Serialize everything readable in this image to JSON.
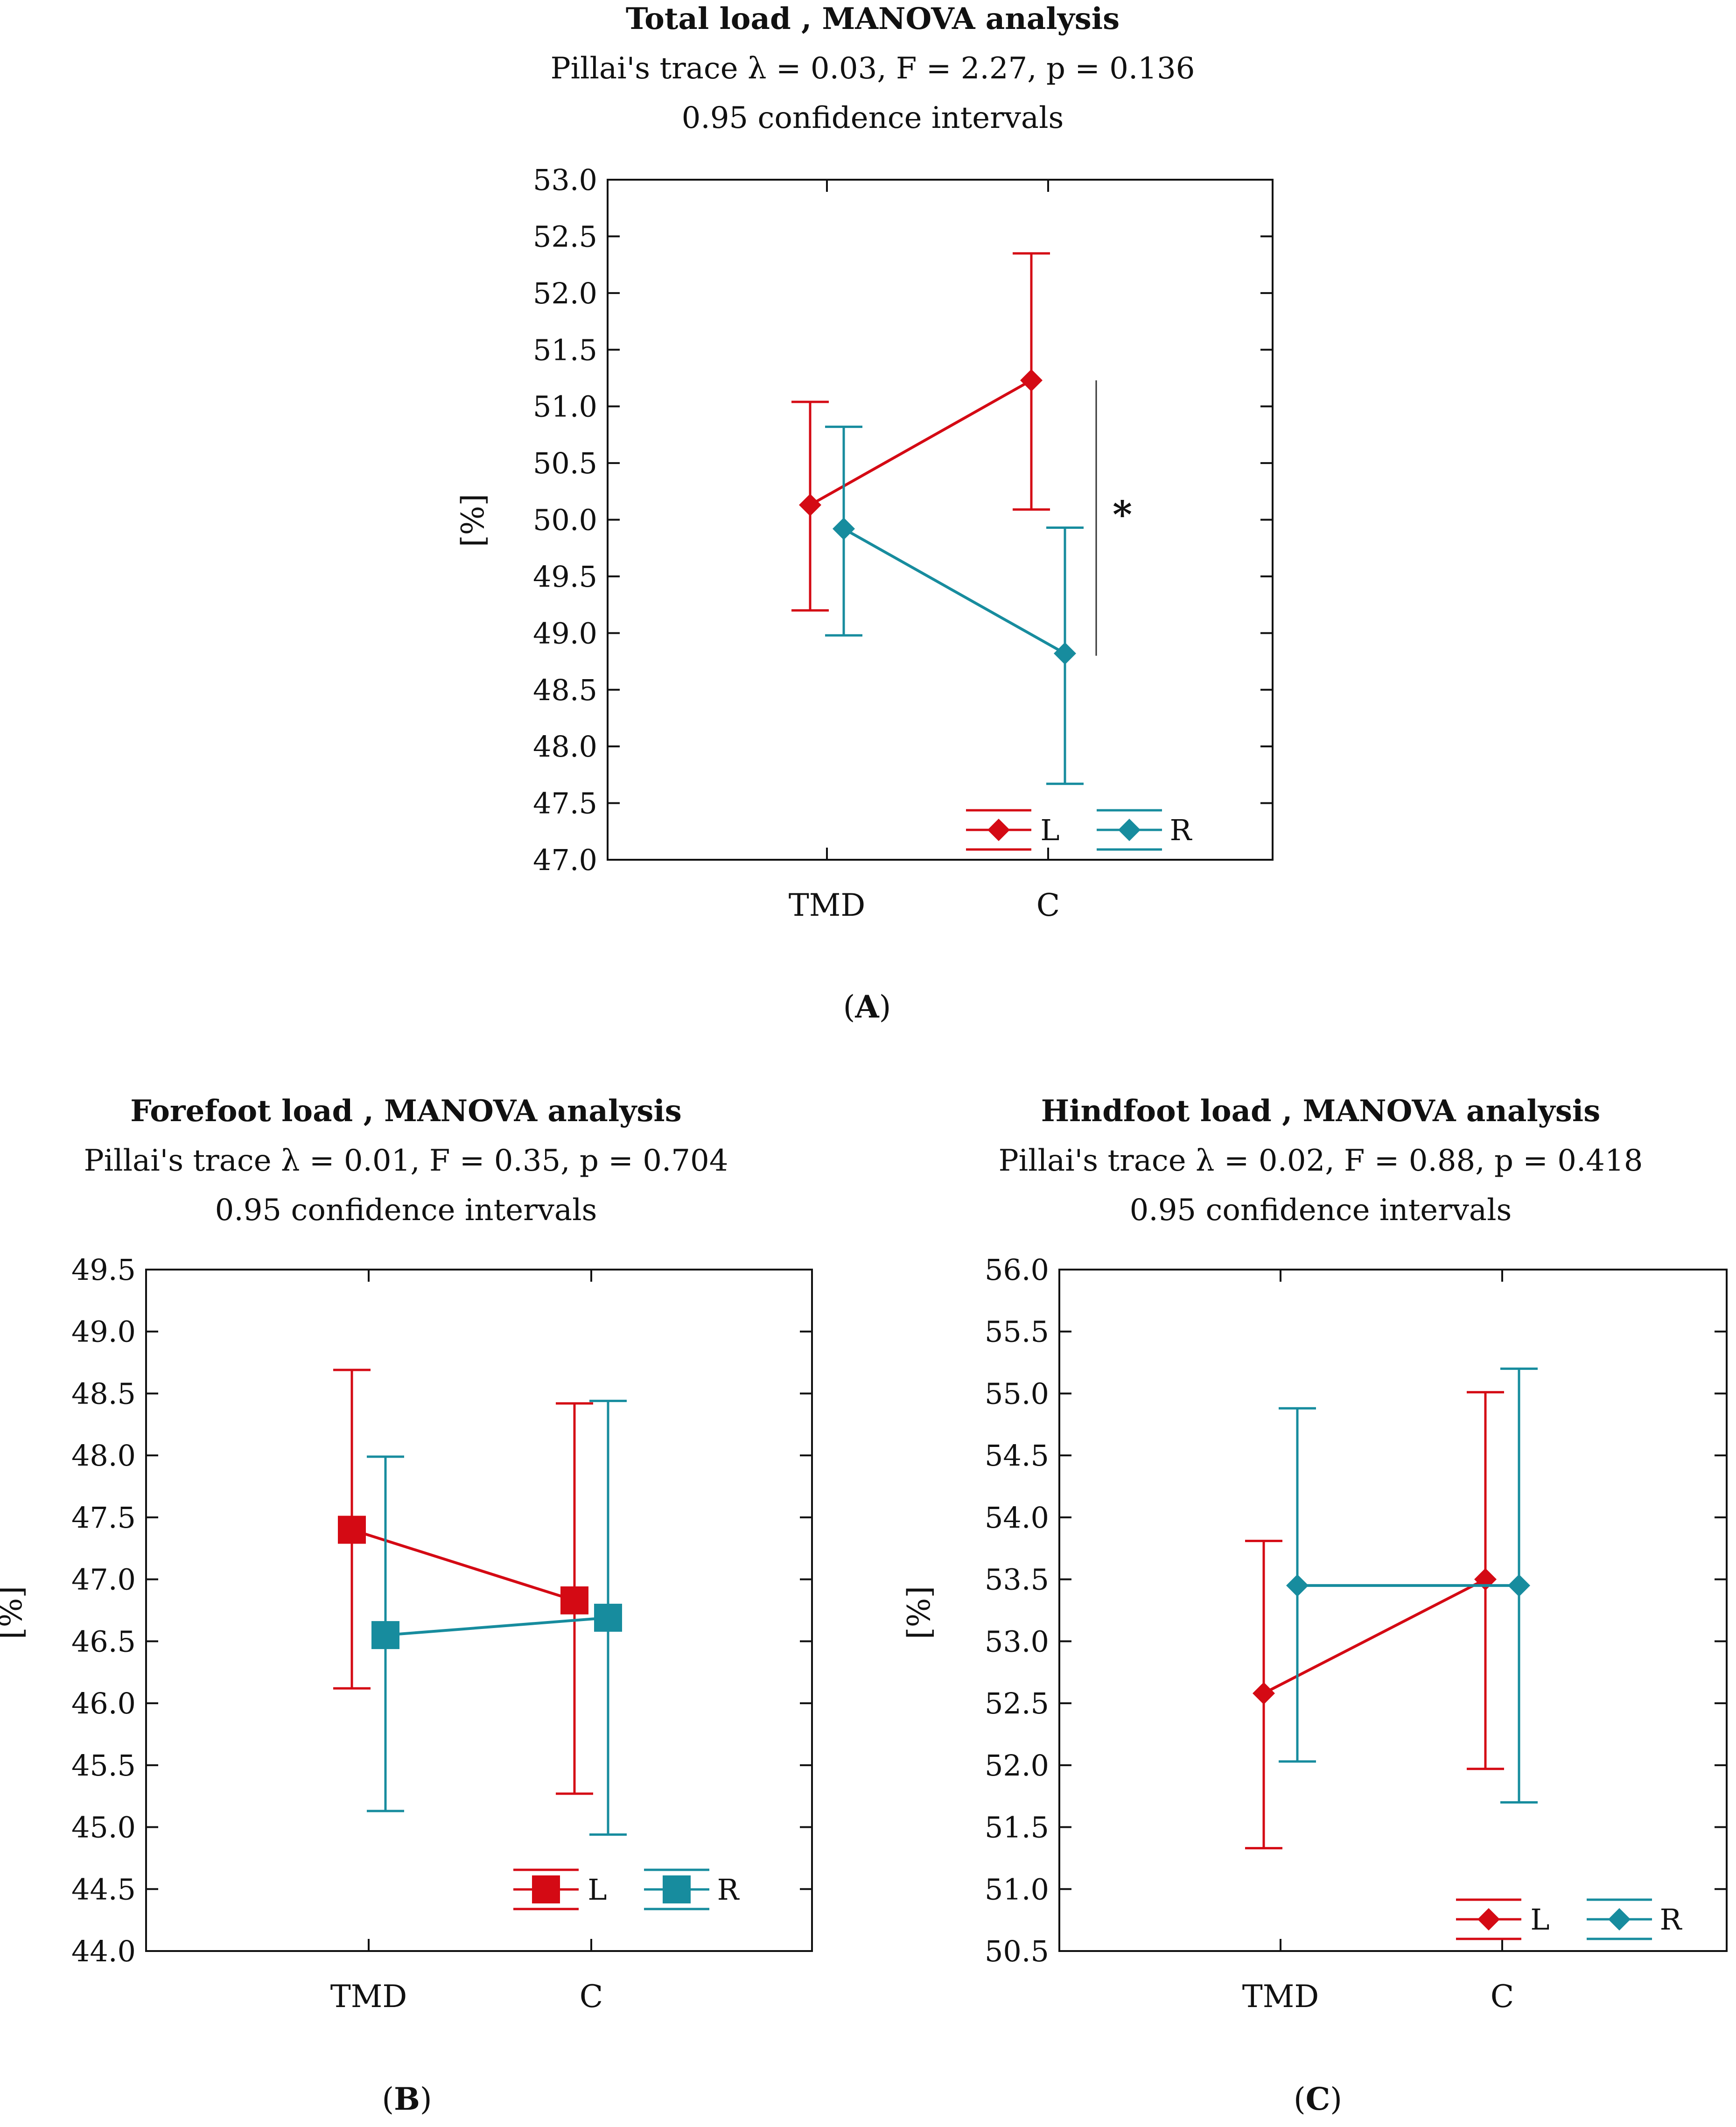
{
  "colors": {
    "L": "#d40a14",
    "R": "#178c9e",
    "axis": "#111111",
    "bracket": "#333333"
  },
  "chart_data": [
    {
      "id": "A",
      "panel_label": "A",
      "type": "line",
      "title": "Total load , MANOVA analysis",
      "subtitle": "Pillai's trace λ = 0.03, F = 2.27, p = 0.136",
      "subtitle2": "0.95 confidence intervals",
      "ylabel": "[%]",
      "categories": [
        "TMD",
        "C"
      ],
      "ylim": [
        47.0,
        53.0
      ],
      "ytick_step": 0.5,
      "marker": "diamond",
      "series": [
        {
          "name": "L",
          "values": [
            50.13,
            51.23
          ],
          "lower": [
            49.2,
            50.09
          ],
          "upper": [
            51.04,
            52.35
          ]
        },
        {
          "name": "R",
          "values": [
            49.92,
            48.82
          ],
          "lower": [
            48.98,
            47.67
          ],
          "upper": [
            50.82,
            49.93
          ]
        }
      ],
      "annotation": {
        "text": "*",
        "from": 48.8,
        "to": 51.23
      }
    },
    {
      "id": "B",
      "panel_label": "B",
      "type": "line",
      "title": "Forefoot load , MANOVA analysis",
      "subtitle": "Pillai's trace λ = 0.01, F = 0.35, p = 0.704",
      "subtitle2": "0.95 confidence intervals",
      "ylabel": "[%]",
      "categories": [
        "TMD",
        "C"
      ],
      "ylim": [
        44.0,
        49.5
      ],
      "ytick_step": 0.5,
      "marker": "square",
      "series": [
        {
          "name": "L",
          "values": [
            47.4,
            46.83
          ],
          "lower": [
            46.12,
            45.27
          ],
          "upper": [
            48.69,
            48.42
          ]
        },
        {
          "name": "R",
          "values": [
            46.55,
            46.69
          ],
          "lower": [
            45.13,
            44.94
          ],
          "upper": [
            47.99,
            48.44
          ]
        }
      ]
    },
    {
      "id": "C",
      "panel_label": "C",
      "type": "line",
      "title": "Hindfoot load , MANOVA analysis",
      "subtitle": "Pillai's trace λ = 0.02, F = 0.88, p = 0.418",
      "subtitle2": "0.95 confidence intervals",
      "ylabel": "[%]",
      "categories": [
        "TMD",
        "C"
      ],
      "ylim": [
        50.5,
        56.0
      ],
      "ytick_step": 0.5,
      "marker": "diamond",
      "series": [
        {
          "name": "L",
          "values": [
            52.58,
            53.5
          ],
          "lower": [
            51.33,
            51.97
          ],
          "upper": [
            53.81,
            55.01
          ]
        },
        {
          "name": "R",
          "values": [
            53.45,
            53.45
          ],
          "lower": [
            52.03,
            51.7
          ],
          "upper": [
            54.88,
            55.2
          ]
        }
      ]
    }
  ]
}
